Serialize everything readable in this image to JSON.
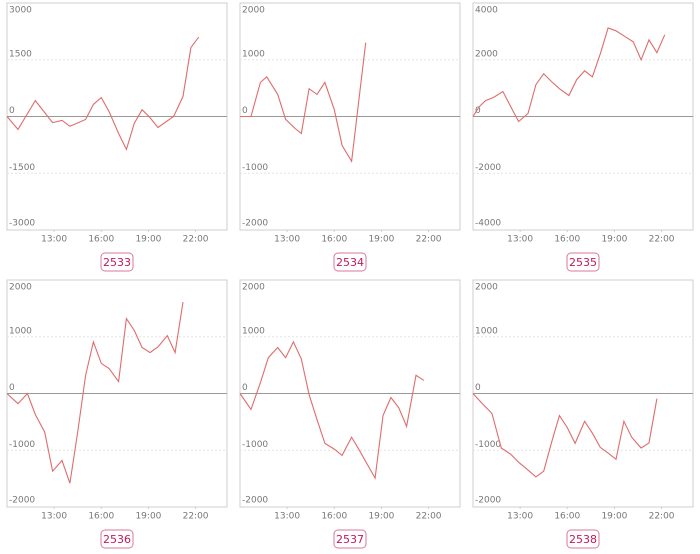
{
  "chart_data": [
    {
      "type": "line",
      "title": "2533",
      "color": "#e06c6c",
      "x": [
        10.0,
        10.7,
        11.8,
        12.9,
        13.5,
        14.0,
        15.0,
        15.5,
        16.0,
        16.5,
        17.1,
        17.6,
        18.1,
        18.6,
        19.1,
        19.6,
        20.6,
        21.2,
        21.7,
        22.2
      ],
      "values": [
        0,
        -340,
        420,
        -160,
        -100,
        -260,
        -80,
        320,
        500,
        130,
        -450,
        -870,
        -180,
        180,
        -30,
        -290,
        0,
        530,
        1820,
        2100
      ],
      "xlim": [
        10,
        24
      ],
      "xticks": [
        {
          "value": 13,
          "label": "13:00"
        },
        {
          "value": 16,
          "label": "16:00"
        },
        {
          "value": 19,
          "label": "19:00"
        },
        {
          "value": 22,
          "label": "22:00"
        }
      ],
      "ylim": [
        -3000,
        3000
      ],
      "yticks": [
        3000,
        1500,
        0,
        -1500,
        -3000
      ],
      "grid": true
    },
    {
      "type": "line",
      "title": "2534",
      "color": "#e06c6c",
      "x": [
        10.0,
        10.7,
        11.3,
        11.7,
        12.4,
        12.9,
        13.5,
        13.9,
        14.4,
        14.9,
        15.4,
        16.0,
        16.5,
        17.1,
        18.0
      ],
      "values": [
        0,
        0,
        600,
        700,
        390,
        -50,
        -210,
        -300,
        490,
        390,
        600,
        120,
        -510,
        -790,
        1300
      ],
      "xlim": [
        10,
        24
      ],
      "xticks": [
        {
          "value": 13,
          "label": "13:00"
        },
        {
          "value": 16,
          "label": "16:00"
        },
        {
          "value": 19,
          "label": "19:00"
        },
        {
          "value": 22,
          "label": "22:00"
        }
      ],
      "ylim": [
        -2000,
        2000
      ],
      "yticks": [
        2000,
        1000,
        0,
        -1000,
        -2000
      ],
      "grid": true
    },
    {
      "type": "line",
      "title": "2535",
      "color": "#e06c6c",
      "x": [
        10.0,
        10.4,
        10.8,
        11.3,
        11.9,
        12.4,
        12.9,
        13.5,
        14.0,
        14.5,
        15.0,
        15.5,
        16.1,
        16.6,
        17.1,
        17.6,
        18.1,
        18.6,
        19.1,
        19.7,
        20.2,
        20.7,
        21.2,
        21.7,
        22.2
      ],
      "values": [
        0,
        350,
        560,
        670,
        880,
        350,
        -175,
        105,
        1120,
        1510,
        1230,
        980,
        740,
        1300,
        1610,
        1400,
        2210,
        3120,
        3020,
        2810,
        2630,
        2000,
        2700,
        2250,
        2880
      ],
      "xlim": [
        10,
        24
      ],
      "xticks": [
        {
          "value": 13,
          "label": "13:00"
        },
        {
          "value": 16,
          "label": "16:00"
        },
        {
          "value": 19,
          "label": "19:00"
        },
        {
          "value": 22,
          "label": "22:00"
        }
      ],
      "ylim": [
        -4000,
        4000
      ],
      "yticks": [
        4000,
        2000,
        0,
        -2000,
        -4000
      ],
      "grid": true
    },
    {
      "type": "line",
      "title": "2536",
      "color": "#e06c6c",
      "x": [
        10.0,
        10.7,
        11.3,
        11.8,
        12.4,
        12.9,
        13.5,
        14.0,
        14.5,
        15.0,
        15.5,
        16.0,
        16.5,
        17.1,
        17.6,
        18.1,
        18.6,
        19.1,
        19.6,
        20.2,
        20.7,
        21.2
      ],
      "values": [
        0,
        -180,
        0,
        -370,
        -680,
        -1370,
        -1180,
        -1580,
        -680,
        320,
        910,
        530,
        440,
        210,
        1320,
        1110,
        810,
        720,
        820,
        1020,
        720,
        1610
      ],
      "xlim": [
        10,
        24
      ],
      "xticks": [
        {
          "value": 13,
          "label": "13:00"
        },
        {
          "value": 16,
          "label": "16:00"
        },
        {
          "value": 19,
          "label": "19:00"
        },
        {
          "value": 22,
          "label": "22:00"
        }
      ],
      "ylim": [
        -2000,
        2000
      ],
      "yticks": [
        2000,
        1000,
        0,
        -1000,
        -2000
      ],
      "grid": true
    },
    {
      "type": "line",
      "title": "2537",
      "color": "#e06c6c",
      "x": [
        10.0,
        10.7,
        11.3,
        11.8,
        12.4,
        12.9,
        13.4,
        13.9,
        14.4,
        14.9,
        15.4,
        16.0,
        16.5,
        17.1,
        17.6,
        18.1,
        18.6,
        19.1,
        19.6,
        20.1,
        20.6,
        21.2,
        21.7
      ],
      "values": [
        0,
        -280,
        190,
        630,
        810,
        630,
        910,
        610,
        -20,
        -460,
        -880,
        -980,
        -1090,
        -770,
        -1000,
        -1250,
        -1490,
        -390,
        -70,
        -250,
        -580,
        320,
        230
      ],
      "xlim": [
        10,
        24
      ],
      "xticks": [
        {
          "value": 13,
          "label": "13:00"
        },
        {
          "value": 16,
          "label": "16:00"
        },
        {
          "value": 19,
          "label": "19:00"
        },
        {
          "value": 22,
          "label": "22:00"
        }
      ],
      "ylim": [
        -2000,
        2000
      ],
      "yticks": [
        2000,
        1000,
        0,
        -1000,
        -2000
      ],
      "grid": true
    },
    {
      "type": "line",
      "title": "2538",
      "color": "#e06c6c",
      "x": [
        10.0,
        10.6,
        11.2,
        11.8,
        12.4,
        12.9,
        13.5,
        14.0,
        14.5,
        15.0,
        15.5,
        16.0,
        16.5,
        17.1,
        17.6,
        18.1,
        18.6,
        19.1,
        19.6,
        20.1,
        20.7,
        21.2,
        21.7
      ],
      "values": [
        0,
        -180,
        -350,
        -960,
        -1070,
        -1210,
        -1350,
        -1470,
        -1370,
        -860,
        -390,
        -600,
        -880,
        -490,
        -700,
        -950,
        -1050,
        -1160,
        -490,
        -770,
        -960,
        -870,
        -90
      ],
      "xlim": [
        10,
        24
      ],
      "xticks": [
        {
          "value": 13,
          "label": "13:00"
        },
        {
          "value": 16,
          "label": "16:00"
        },
        {
          "value": 19,
          "label": "19:00"
        },
        {
          "value": 22,
          "label": "22:00"
        }
      ],
      "ylim": [
        -2000,
        2000
      ],
      "yticks": [
        2000,
        1000,
        0,
        -1000,
        -2000
      ],
      "grid": true
    }
  ]
}
